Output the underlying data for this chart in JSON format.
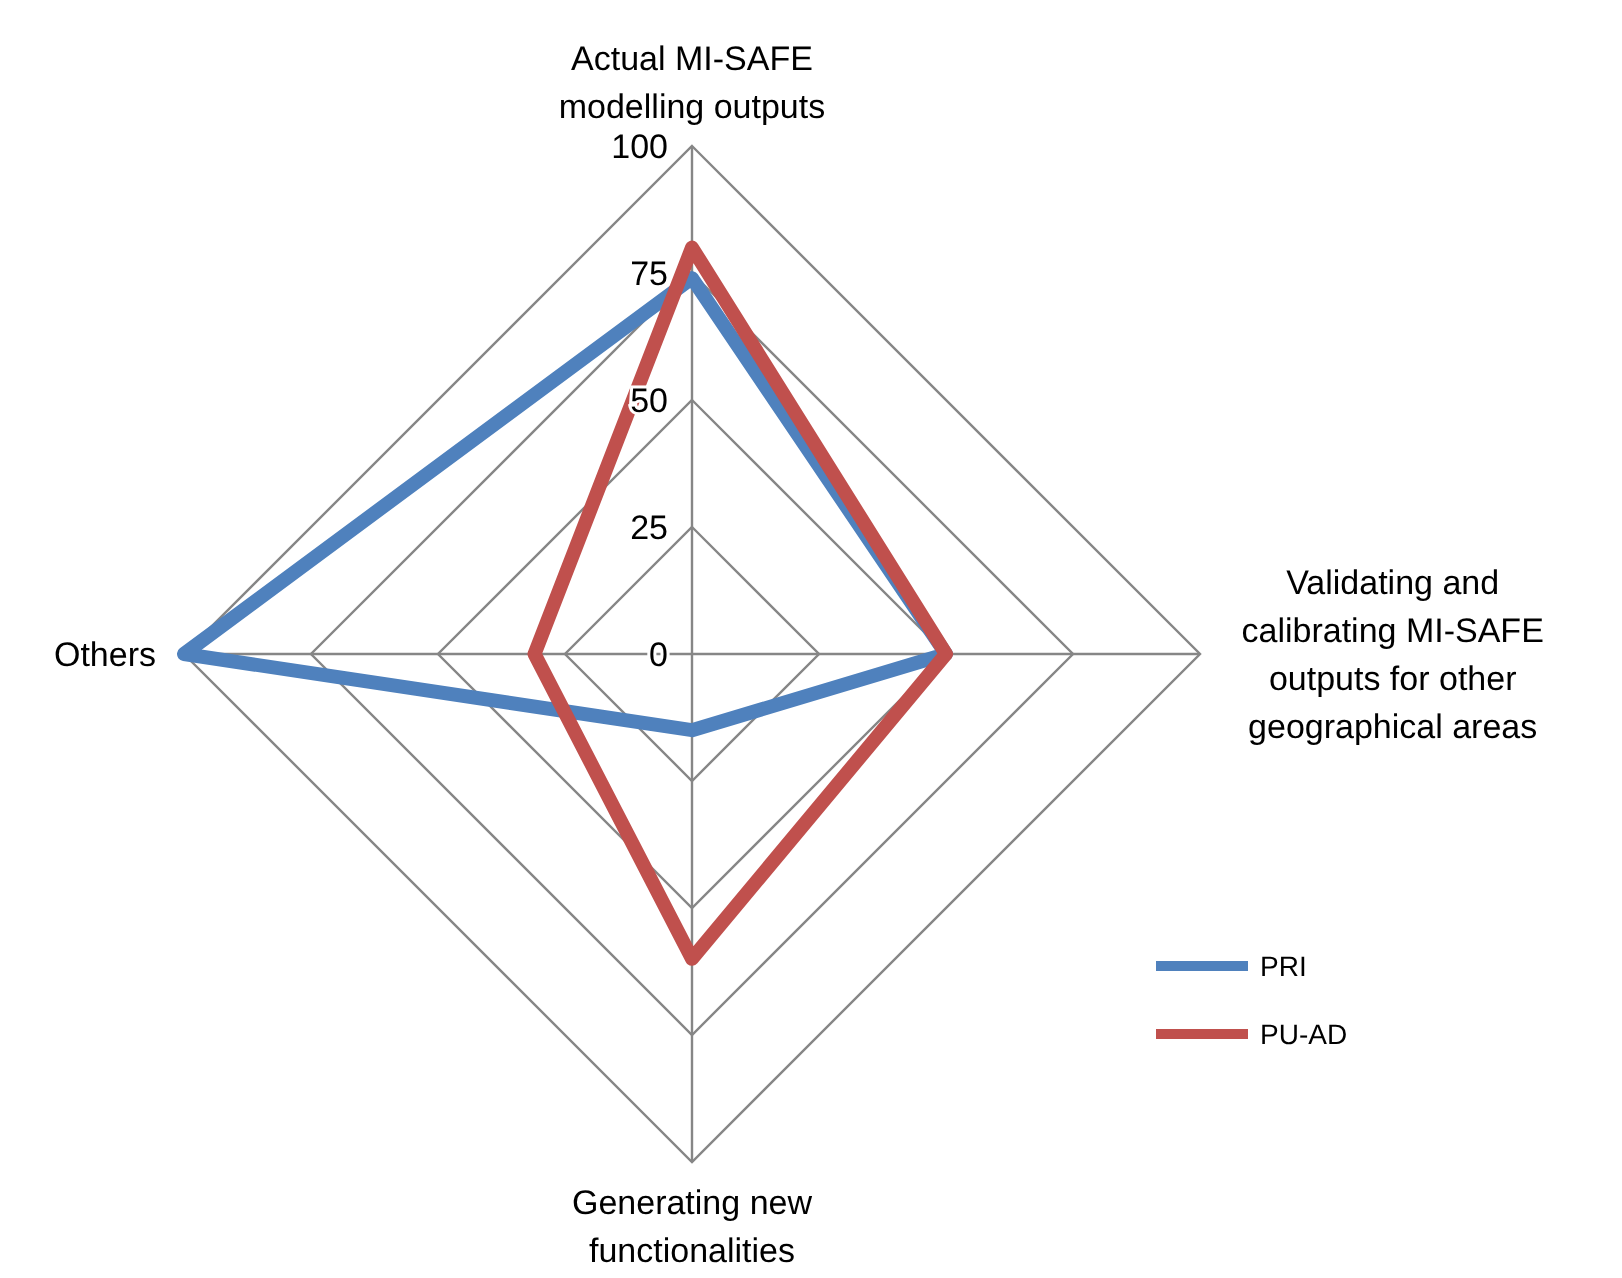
{
  "chart_data": {
    "type": "radar",
    "categories": [
      "Actual MI-SAFE modelling outputs",
      "Validating and calibrating MI-SAFE outputs for other geographical areas",
      "Generating new functionalities",
      "Others"
    ],
    "series": [
      {
        "name": "PRI",
        "color": "#4f81bd",
        "values": [
          74,
          50,
          15,
          100
        ]
      },
      {
        "name": "PU-AD",
        "color": "#c0504d",
        "values": [
          80,
          50,
          60,
          31
        ]
      }
    ],
    "ylim": [
      0,
      100
    ],
    "yticks": [
      0,
      25,
      50,
      75,
      100
    ],
    "grid": true,
    "legend": "right"
  }
}
